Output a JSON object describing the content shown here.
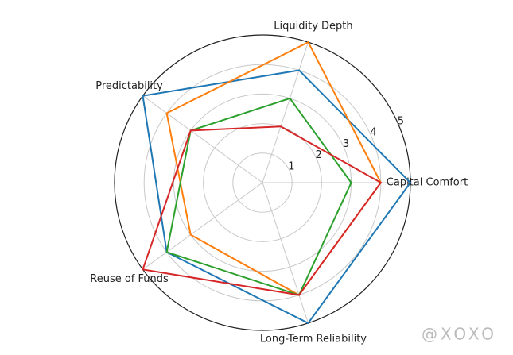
{
  "chart_data": {
    "type": "radar",
    "categories": [
      "Capital Comfort",
      "Liquidity Depth",
      "Predictability",
      "Reuse of Funds",
      "Long-Term Reliability"
    ],
    "series": [
      {
        "color": "#1f77b4",
        "values": [
          5,
          4,
          5,
          4,
          5
        ]
      },
      {
        "color": "#ff7f0e",
        "values": [
          4,
          5,
          4,
          3,
          4
        ]
      },
      {
        "color": "#2ca02c",
        "values": [
          3,
          3,
          3,
          4,
          4
        ]
      },
      {
        "color": "#d62728",
        "values": [
          4,
          2,
          3,
          5,
          4
        ]
      }
    ],
    "ylim": [
      0,
      5
    ],
    "yticks": [
      1,
      2,
      3,
      4,
      5
    ],
    "grid": true,
    "watermark": "@XOXO"
  }
}
